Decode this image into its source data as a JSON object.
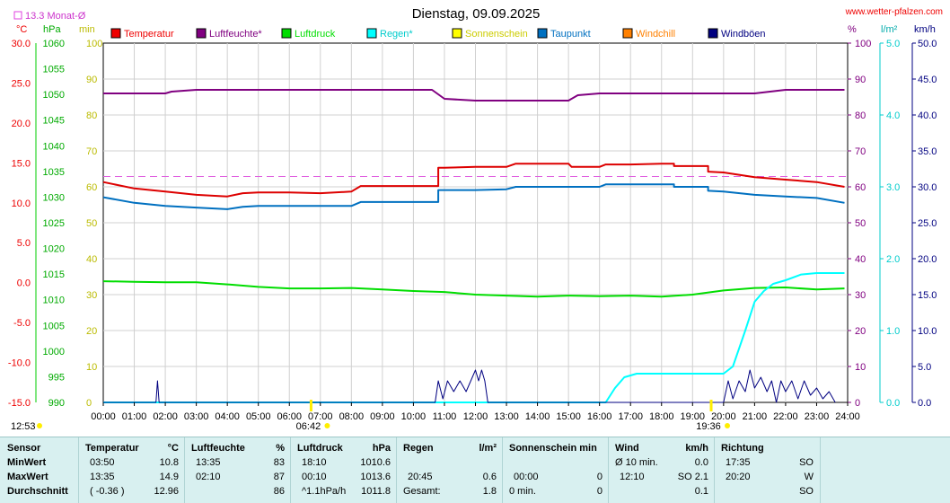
{
  "chart_data": {
    "type": "line",
    "title": "Dienstag, 09.09.2025",
    "source": "www.wetter-pfalzen.com",
    "month_avg_label": "13.3 Monat-Ø",
    "x_ticks": [
      "00:00",
      "01:00",
      "02:00",
      "03:00",
      "04:00",
      "05:00",
      "06:00",
      "07:00",
      "08:00",
      "09:00",
      "10:00",
      "11:00",
      "12:00",
      "13:00",
      "14:00",
      "15:00",
      "16:00",
      "17:00",
      "18:00",
      "19:00",
      "20:00",
      "21:00",
      "22:00",
      "23:00",
      "24:00"
    ],
    "sunrise": "06:42",
    "sunset": "19:36",
    "daylength": "12:53",
    "axes": {
      "temp": {
        "unit": "°C",
        "ticks": [
          "30.0",
          "25.0",
          "20.0",
          "15.0",
          "10.0",
          "5.0",
          "0.0",
          "-5.0",
          "-10.0",
          "-15.0"
        ],
        "ylim": [
          -15,
          30
        ],
        "color": "#ff0000"
      },
      "pressure": {
        "unit": "hPa",
        "ticks": [
          "1060",
          "1055",
          "1050",
          "1045",
          "1040",
          "1035",
          "1030",
          "1025",
          "1020",
          "1015",
          "1010",
          "1005",
          "1000",
          "995",
          "990"
        ],
        "ylim": [
          990,
          1060
        ],
        "color": "#00aa00"
      },
      "min": {
        "unit": "min",
        "ticks": [
          "100",
          "90",
          "80",
          "70",
          "60",
          "50",
          "40",
          "30",
          "20",
          "10",
          "0"
        ],
        "ylim": [
          0,
          100
        ],
        "color": "#cccc00"
      },
      "humidity": {
        "unit": "%",
        "ticks": [
          "100",
          "90",
          "80",
          "70",
          "60",
          "50",
          "40",
          "30",
          "20",
          "10",
          "0"
        ],
        "ylim": [
          0,
          100
        ],
        "color": "#800080"
      },
      "rain": {
        "unit": "l/m²",
        "ticks": [
          "5.0",
          "4.0",
          "3.0",
          "2.0",
          "1.0",
          "0.0"
        ],
        "ylim": [
          0,
          5
        ],
        "color": "#00cccc"
      },
      "wind": {
        "unit": "km/h",
        "ticks": [
          "50.0",
          "45.0",
          "40.0",
          "35.0",
          "30.0",
          "25.0",
          "20.0",
          "15.0",
          "10.0",
          "5.0",
          "0.0"
        ],
        "ylim": [
          0,
          50
        ],
        "color": "#000080"
      }
    },
    "legend": [
      {
        "name": "Temperatur",
        "color": "#ee0000"
      },
      {
        "name": "Luftfeuchte*",
        "color": "#800080"
      },
      {
        "name": "Luftdruck",
        "color": "#00dd00"
      },
      {
        "name": "Regen*",
        "color": "#00ffff"
      },
      {
        "name": "Sonnenschein",
        "color": "#ffff00"
      },
      {
        "name": "Taupunkt",
        "color": "#0070c0"
      },
      {
        "name": "Windchill",
        "color": "#ff8000"
      },
      {
        "name": "Windböen",
        "color": "#000080"
      }
    ],
    "month_avg_temp": 13.3,
    "series": [
      {
        "name": "Temperatur",
        "axis": "temp",
        "color": "#dd0000",
        "points": [
          [
            0,
            12.6
          ],
          [
            1,
            11.8
          ],
          [
            2,
            11.4
          ],
          [
            3,
            11.0
          ],
          [
            4,
            10.8
          ],
          [
            4.5,
            11.2
          ],
          [
            5,
            11.3
          ],
          [
            6,
            11.3
          ],
          [
            7,
            11.2
          ],
          [
            8,
            11.4
          ],
          [
            8.3,
            12.1
          ],
          [
            9,
            12.1
          ],
          [
            10,
            12.1
          ],
          [
            10.8,
            12.1
          ],
          [
            10.8,
            14.4
          ],
          [
            11,
            14.4
          ],
          [
            12,
            14.5
          ],
          [
            13,
            14.5
          ],
          [
            13.3,
            14.9
          ],
          [
            14,
            14.9
          ],
          [
            15,
            14.9
          ],
          [
            15.1,
            14.5
          ],
          [
            16,
            14.5
          ],
          [
            16.2,
            14.8
          ],
          [
            17,
            14.8
          ],
          [
            18,
            14.9
          ],
          [
            18.4,
            14.9
          ],
          [
            18.4,
            14.6
          ],
          [
            19,
            14.6
          ],
          [
            19.5,
            14.6
          ],
          [
            19.5,
            13.9
          ],
          [
            20,
            13.8
          ],
          [
            21,
            13.2
          ],
          [
            22,
            12.9
          ],
          [
            23,
            12.6
          ],
          [
            23.9,
            12.0
          ]
        ]
      },
      {
        "name": "Taupunkt",
        "axis": "temp",
        "color": "#0070c0",
        "points": [
          [
            0,
            10.7
          ],
          [
            1,
            10.0
          ],
          [
            2,
            9.6
          ],
          [
            3,
            9.4
          ],
          [
            4,
            9.2
          ],
          [
            4.5,
            9.5
          ],
          [
            5,
            9.6
          ],
          [
            6,
            9.6
          ],
          [
            7,
            9.6
          ],
          [
            8,
            9.6
          ],
          [
            8.3,
            10.1
          ],
          [
            9,
            10.1
          ],
          [
            10,
            10.1
          ],
          [
            10.8,
            10.1
          ],
          [
            10.8,
            11.6
          ],
          [
            11,
            11.6
          ],
          [
            12,
            11.6
          ],
          [
            13,
            11.7
          ],
          [
            13.3,
            12.0
          ],
          [
            14,
            12.0
          ],
          [
            15,
            12.0
          ],
          [
            16,
            12.0
          ],
          [
            16.2,
            12.3
          ],
          [
            17,
            12.3
          ],
          [
            18,
            12.3
          ],
          [
            18.4,
            12.3
          ],
          [
            18.4,
            12.0
          ],
          [
            19,
            12.0
          ],
          [
            19.5,
            12.0
          ],
          [
            19.5,
            11.5
          ],
          [
            20,
            11.4
          ],
          [
            21,
            11.0
          ],
          [
            22,
            10.8
          ],
          [
            23,
            10.6
          ],
          [
            23.9,
            10.0
          ]
        ]
      },
      {
        "name": "Luftfeuchte*",
        "axis": "humidity",
        "color": "#800080",
        "points": [
          [
            0,
            86
          ],
          [
            1,
            86
          ],
          [
            2,
            86
          ],
          [
            2.2,
            86.5
          ],
          [
            3,
            87
          ],
          [
            4,
            87
          ],
          [
            5,
            87
          ],
          [
            6,
            87
          ],
          [
            7,
            87
          ],
          [
            8,
            87
          ],
          [
            9,
            87
          ],
          [
            10,
            87
          ],
          [
            10.6,
            87
          ],
          [
            11,
            84.5
          ],
          [
            12,
            84
          ],
          [
            13,
            84
          ],
          [
            14,
            84
          ],
          [
            15,
            84
          ],
          [
            15.3,
            85.5
          ],
          [
            16,
            86
          ],
          [
            17,
            86
          ],
          [
            18,
            86
          ],
          [
            19,
            86
          ],
          [
            20,
            86
          ],
          [
            21,
            86
          ],
          [
            21.5,
            86.5
          ],
          [
            22,
            87
          ],
          [
            23,
            87
          ],
          [
            23.9,
            87
          ]
        ]
      },
      {
        "name": "Luftdruck",
        "axis": "pressure",
        "color": "#00dd00",
        "points": [
          [
            0,
            1013.6
          ],
          [
            1,
            1013.5
          ],
          [
            2,
            1013.4
          ],
          [
            3,
            1013.4
          ],
          [
            4,
            1013.0
          ],
          [
            5,
            1012.5
          ],
          [
            6,
            1012.2
          ],
          [
            7,
            1012.2
          ],
          [
            8,
            1012.3
          ],
          [
            9,
            1012.0
          ],
          [
            10,
            1011.7
          ],
          [
            11,
            1011.5
          ],
          [
            12,
            1011.0
          ],
          [
            13,
            1010.8
          ],
          [
            14,
            1010.6
          ],
          [
            15,
            1010.8
          ],
          [
            16,
            1010.7
          ],
          [
            17,
            1010.8
          ],
          [
            18,
            1010.6
          ],
          [
            19,
            1011.0
          ],
          [
            20,
            1011.8
          ],
          [
            21,
            1012.3
          ],
          [
            22,
            1012.4
          ],
          [
            23,
            1012.0
          ],
          [
            23.9,
            1012.2
          ]
        ]
      },
      {
        "name": "Regen*",
        "axis": "rain",
        "color": "#00ffff",
        "points": [
          [
            0,
            0
          ],
          [
            16.2,
            0
          ],
          [
            16.5,
            0.2
          ],
          [
            16.8,
            0.35
          ],
          [
            17.2,
            0.4
          ],
          [
            18,
            0.4
          ],
          [
            19,
            0.4
          ],
          [
            20,
            0.4
          ],
          [
            20.3,
            0.5
          ],
          [
            20.7,
            1.0
          ],
          [
            21.0,
            1.4
          ],
          [
            21.3,
            1.55
          ],
          [
            21.6,
            1.65
          ],
          [
            22,
            1.7
          ],
          [
            22.5,
            1.78
          ],
          [
            23,
            1.8
          ],
          [
            23.9,
            1.8
          ]
        ]
      },
      {
        "name": "Windböen",
        "axis": "wind",
        "color": "#000080",
        "points": [
          [
            0,
            0
          ],
          [
            1.7,
            0
          ],
          [
            1.75,
            3.0
          ],
          [
            1.8,
            0
          ],
          [
            10.7,
            0
          ],
          [
            10.8,
            3.0
          ],
          [
            10.95,
            0.5
          ],
          [
            11.1,
            3.0
          ],
          [
            11.3,
            1.5
          ],
          [
            11.5,
            3.0
          ],
          [
            11.7,
            1.5
          ],
          [
            11.85,
            3.0
          ],
          [
            12.0,
            4.5
          ],
          [
            12.1,
            3.0
          ],
          [
            12.2,
            4.5
          ],
          [
            12.3,
            3.0
          ],
          [
            12.4,
            0
          ],
          [
            20.0,
            0
          ],
          [
            20.15,
            3.0
          ],
          [
            20.3,
            0.5
          ],
          [
            20.5,
            3.0
          ],
          [
            20.7,
            1.5
          ],
          [
            20.85,
            4.5
          ],
          [
            21.0,
            2.0
          ],
          [
            21.2,
            3.5
          ],
          [
            21.4,
            1.5
          ],
          [
            21.55,
            3.0
          ],
          [
            21.7,
            0
          ],
          [
            21.85,
            3.0
          ],
          [
            22.0,
            1.5
          ],
          [
            22.2,
            3.0
          ],
          [
            22.4,
            0.5
          ],
          [
            22.6,
            3.0
          ],
          [
            22.8,
            1.0
          ],
          [
            23.0,
            2.0
          ],
          [
            23.2,
            0.5
          ],
          [
            23.4,
            1.5
          ],
          [
            23.6,
            0
          ]
        ]
      }
    ]
  },
  "table": {
    "headers": {
      "sensor": "Sensor",
      "temp": "Temperatur",
      "temp_unit": "°C",
      "hum": "Luftfeuchte",
      "hum_unit": "%",
      "pres": "Luftdruck",
      "pres_unit": "hPa",
      "rain": "Regen",
      "rain_unit": "l/m²",
      "sun": "Sonnenschein min",
      "wind": "Wind",
      "wind_unit": "km/h",
      "dir": "Richtung"
    },
    "rows": [
      {
        "label": "MinWert",
        "temp_t": "03:50",
        "temp_v": "10.8",
        "hum_t": "13:35",
        "hum_v": "83",
        "pres_t": "18:10",
        "pres_v": "1010.6",
        "rain_t": "",
        "rain_v": "",
        "sun_t": "",
        "sun_v": "",
        "wind_t": "Ø 10 min.",
        "wind_v": "0.0",
        "dir_t": "17:35",
        "dir_v": "SO"
      },
      {
        "label": "MaxWert",
        "temp_t": "13:35",
        "temp_v": "14.9",
        "hum_t": "02:10",
        "hum_v": "87",
        "pres_t": "00:10",
        "pres_v": "1013.6",
        "rain_t": "20:45",
        "rain_v": "0.6",
        "sun_t": "00:00",
        "sun_v": "0",
        "wind_t": "12:10",
        "wind_v": "SO 2.1",
        "dir_t": "20:20",
        "dir_v": "W"
      },
      {
        "label": "Durchschnitt",
        "temp_t": "( -0.36 )",
        "temp_v": "12.96",
        "hum_t": "",
        "hum_v": "86",
        "pres_t": "^1.1hPa/h",
        "pres_v": "1011.8",
        "rain_t": "Gesamt:",
        "rain_v": "1.8",
        "sun_t": "0 min.",
        "sun_v": "0",
        "wind_t": "",
        "wind_v": "0.1",
        "dir_t": "",
        "dir_v": "SO"
      }
    ]
  }
}
